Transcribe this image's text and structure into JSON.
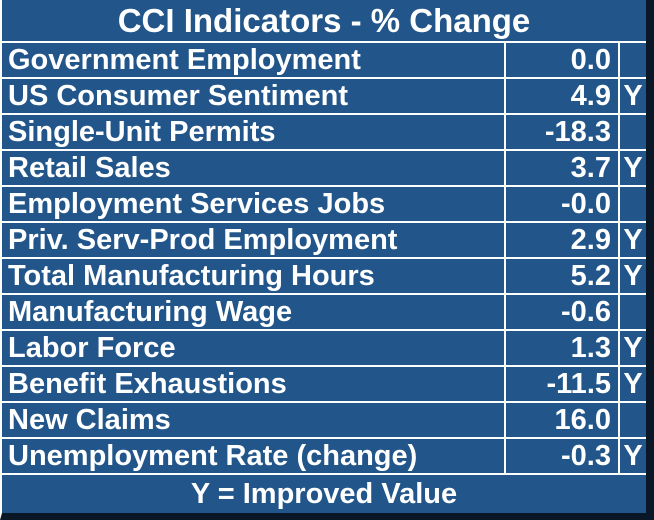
{
  "chart_data": {
    "type": "table",
    "title": "CCI Indicators - % Change",
    "footer_note": "Y = Improved Value",
    "rows": [
      {
        "label": "Government Employment",
        "value": "0.0",
        "flag": ""
      },
      {
        "label": "US Consumer Sentiment",
        "value": "4.9",
        "flag": "Y"
      },
      {
        "label": "Single-Unit Permits",
        "value": "-18.3",
        "flag": ""
      },
      {
        "label": "Retail Sales",
        "value": "3.7",
        "flag": "Y"
      },
      {
        "label": "Employment Services Jobs",
        "value": "-0.0",
        "flag": ""
      },
      {
        "label": "Priv. Serv-Prod Employment",
        "value": "2.9",
        "flag": "Y"
      },
      {
        "label": "Total Manufacturing Hours",
        "value": "5.2",
        "flag": "Y"
      },
      {
        "label": "Manufacturing Wage",
        "value": "-0.6",
        "flag": ""
      },
      {
        "label": "Labor Force",
        "value": "1.3",
        "flag": "Y"
      },
      {
        "label": "Benefit Exhaustions",
        "value": "-11.5",
        "flag": "Y"
      },
      {
        "label": "New Claims",
        "value": "16.0",
        "flag": ""
      },
      {
        "label": "Unemployment Rate (change)",
        "value": "-0.3",
        "flag": "Y"
      }
    ]
  },
  "colors": {
    "cell_blue": "#22568A",
    "grid_white": "#FDFDFD",
    "shadow_dark": "#0A1726",
    "text_white": "#FFFFFF"
  }
}
